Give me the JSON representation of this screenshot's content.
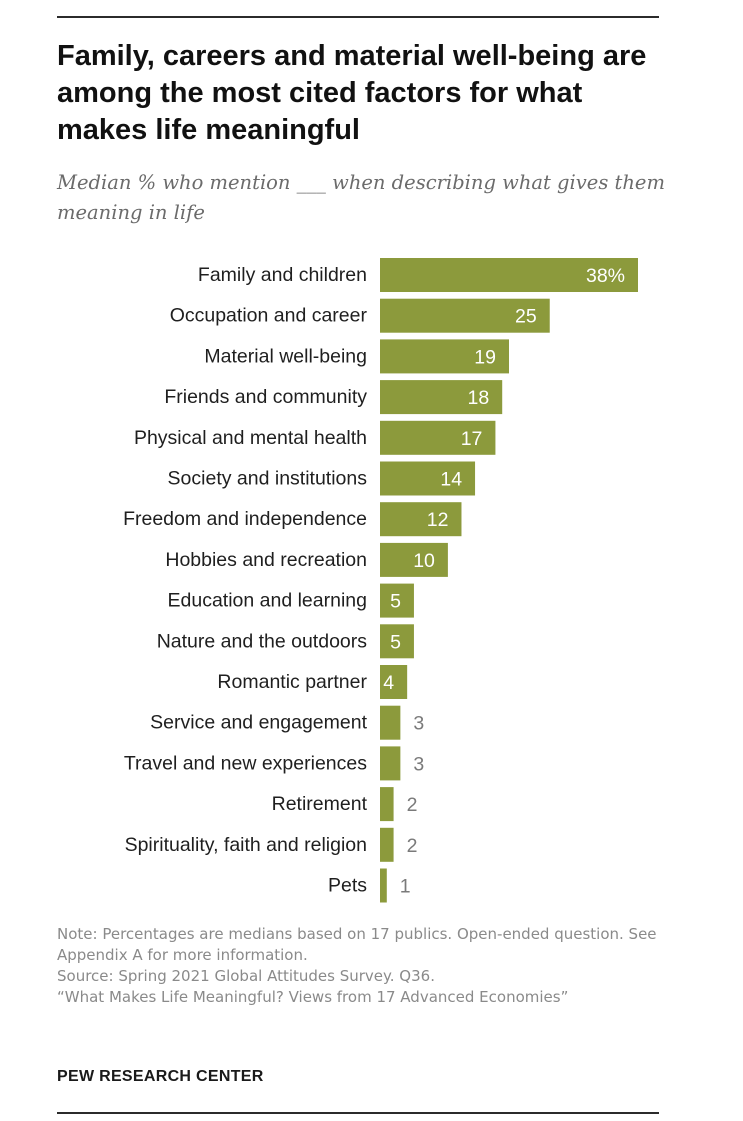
{
  "header": {
    "title": "Family, careers and material well-being are among the most cited factors for what makes life meaningful",
    "subtitle": "Median % who mention ___ when describing what gives them meaning in life"
  },
  "chart_data": {
    "type": "bar",
    "orientation": "horizontal",
    "bar_color": "#8c9a3c",
    "inside_label_color": "#ffffff",
    "outside_label_color": "#7a7a7a",
    "categories": [
      "Family and children",
      "Occupation and career",
      "Material well-being",
      "Friends and community",
      "Physical and mental health",
      "Society and institutions",
      "Freedom and independence",
      "Hobbies and recreation",
      "Education and learning",
      "Nature and the outdoors",
      "Romantic partner",
      "Service and engagement",
      "Travel and new experiences",
      "Retirement",
      "Spirituality, faith and religion",
      "Pets"
    ],
    "values": [
      38,
      25,
      19,
      18,
      17,
      14,
      12,
      10,
      5,
      5,
      4,
      3,
      3,
      2,
      2,
      1
    ],
    "value_labels": [
      "38%",
      "25",
      "19",
      "18",
      "17",
      "14",
      "12",
      "10",
      "5",
      "5",
      "4",
      "3",
      "3",
      "2",
      "2",
      "1"
    ],
    "xlim": [
      0,
      38
    ],
    "grid": false,
    "legend": "none"
  },
  "footer": {
    "note": "Note: Percentages are medians based on 17 publics. Open-ended question. See Appendix A for more information.",
    "source": "Source: Spring 2021 Global Attitudes Survey. Q36.",
    "report": "“What Makes Life Meaningful? Views from 17 Advanced Economies”",
    "brand": "PEW RESEARCH CENTER"
  }
}
